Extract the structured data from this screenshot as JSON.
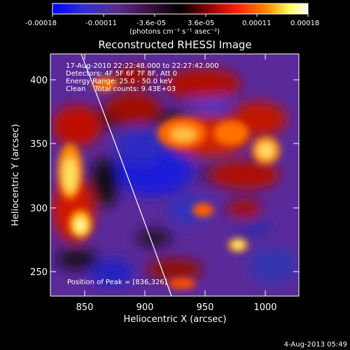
{
  "colorbar": {
    "tick_labels": [
      "-0.00018",
      "-0.00011",
      "-3.6e-05",
      "3.6e-05",
      "0.00011",
      "0.00018"
    ],
    "unit_label": "(photons cm⁻² s⁻¹ asec⁻²)"
  },
  "plot": {
    "title": "Reconstructed RHESSI Image",
    "xlabel": "Heliocentric X (arcsec)",
    "ylabel": "Heliocentric Y (arcsec)",
    "x_ticks": [
      "850",
      "900",
      "950",
      "1000"
    ],
    "y_ticks": [
      "250",
      "300",
      "350",
      "400"
    ],
    "info_lines": [
      "17-Aug-2010 22:22:48.000 to 22:27:42.000",
      "Detectors: 4F 5F 6F 7F 8F, Att 0",
      "Energy Range: 25.0 - 50.0 keV",
      "Clean    Total counts: 9.43E+03"
    ],
    "peak_label": "Position of Peak = [836,326]"
  },
  "footer": {
    "timestamp": "4-Aug-2013 05:49"
  },
  "colors": {
    "cb_stops": [
      "#0000ff",
      "#4040c0",
      "#602080",
      "#400030",
      "#000000",
      "#800000",
      "#ff2000",
      "#ff8000",
      "#ffff80",
      "#ffffff"
    ]
  }
}
